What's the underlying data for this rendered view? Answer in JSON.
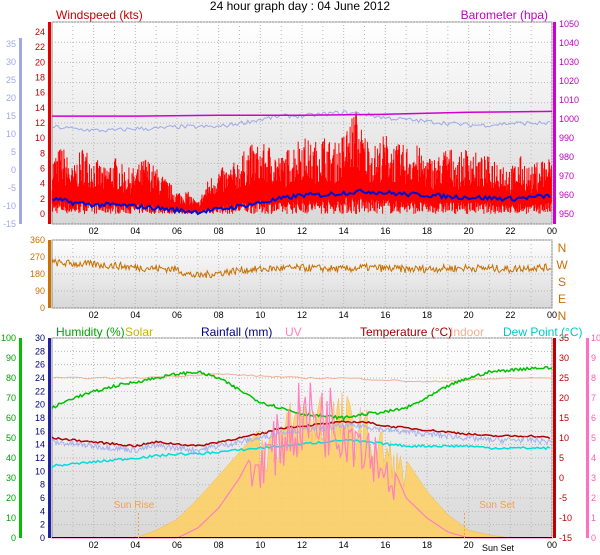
{
  "title": "24 hour graph day : 04 June 2012",
  "labels": {
    "windspeed": "Windspeed (kts)",
    "barometer": "Barometer (hpa)",
    "humidity": "Humidity (%)",
    "solar": "Solar",
    "rainfall": "Rainfall (mm)",
    "uv": "UV",
    "temperature": "Temperature (°C)",
    "indoor": "Indoor",
    "dewpoint": "Dew Point (°C)"
  },
  "sun": {
    "rise": "Sun Rise",
    "set": "Sun Set"
  },
  "colors": {
    "grid": "#b8b8b8",
    "windspeed": "#ff0000",
    "wind_avg": "#0010d0",
    "gust_scale": "#a0a8e8",
    "barometer": "#d000d0",
    "wind_dir": "#c87000",
    "humidity": "#00c000",
    "solar": "#ffd060",
    "rainfall": "#000080",
    "uv": "#ff80c0",
    "temperature": "#b00000",
    "indoor": "#f0b090",
    "dewpoint": "#00dddd"
  },
  "chart_data": [
    {
      "type": "line",
      "title": "24 hour graph day : 04 June 2012",
      "x_tick_labels": [
        "02",
        "04",
        "06",
        "08",
        "10",
        "12",
        "14",
        "16",
        "18",
        "20",
        "22",
        "00"
      ],
      "x_range_hours": [
        0,
        24
      ],
      "axes": {
        "outer_left": {
          "ticks": [
            "35",
            "30",
            "25",
            "20",
            "15",
            "10",
            "5",
            "0",
            "-5",
            "-10",
            "-15"
          ],
          "range": [
            -15,
            35
          ]
        },
        "left": {
          "label": "Windspeed (kts)",
          "ticks": [
            "24",
            "22",
            "20",
            "18",
            "16",
            "14",
            "12",
            "10",
            "8",
            "6",
            "4",
            "2",
            "0"
          ],
          "range": [
            0,
            24
          ]
        },
        "right": {
          "label": "Barometer (hpa)",
          "ticks": [
            "1050",
            "1040",
            "1030",
            "1020",
            "1010",
            "1000",
            "990",
            "980",
            "970",
            "960",
            "950"
          ],
          "range": [
            950,
            1050
          ]
        }
      },
      "series": [
        {
          "name": "Windspeed (kts)",
          "x": [
            0,
            0.5,
            1,
            1.5,
            2,
            2.5,
            3,
            3.5,
            4,
            4.5,
            5,
            5.5,
            6,
            6.5,
            7,
            7.5,
            8,
            8.5,
            9,
            9.5,
            10,
            10.5,
            11,
            11.5,
            12,
            12.5,
            13,
            13.5,
            14,
            14.5,
            15,
            15.5,
            16,
            16.5,
            17,
            17.5,
            18,
            18.5,
            19,
            19.5,
            20,
            20.5,
            21,
            21.5,
            22,
            22.5,
            23,
            23.5,
            24
          ],
          "values": [
            5,
            6,
            4,
            6,
            5,
            4,
            5,
            4,
            4,
            5,
            4,
            3,
            2,
            2,
            1,
            3,
            4,
            4,
            5,
            6,
            6,
            6,
            5,
            6,
            7,
            6,
            7,
            6,
            7,
            9,
            7,
            6,
            7,
            6,
            6,
            6,
            5,
            5,
            6,
            5,
            6,
            5,
            5,
            5,
            4,
            5,
            4,
            5,
            5
          ]
        },
        {
          "name": "Windspeed (kts) average",
          "x": [
            0,
            1,
            2,
            3,
            4,
            5,
            6,
            7,
            8,
            9,
            10,
            11,
            12,
            13,
            14,
            15,
            16,
            17,
            18,
            19,
            20,
            21,
            22,
            23,
            24
          ],
          "values": [
            2,
            1.5,
            1.2,
            1.2,
            1,
            0.8,
            0.5,
            0.3,
            0.6,
            1,
            1.5,
            2,
            2.5,
            2.5,
            2.8,
            3,
            2.8,
            2.6,
            2.5,
            2.3,
            2.2,
            2.1,
            2,
            2.2,
            2.4
          ]
        },
        {
          "name": "Windspeed (kts) gust scale",
          "x": [
            0,
            1,
            2,
            3,
            4,
            5,
            6,
            7,
            8,
            9,
            10,
            11,
            12,
            13,
            14,
            15,
            16,
            17,
            18,
            19,
            20,
            21,
            22,
            23,
            24
          ],
          "values": [
            12,
            11.5,
            11,
            11,
            11.5,
            11.5,
            12,
            12,
            12,
            13,
            14,
            15,
            15,
            15.5,
            16,
            15.5,
            14.5,
            14,
            13.5,
            13,
            12.5,
            12.5,
            13,
            13,
            13
          ]
        },
        {
          "name": "Barometer (hpa)",
          "x": [
            0,
            4,
            8,
            12,
            16,
            20,
            24
          ],
          "values": [
            1001.5,
            1001.5,
            1002,
            1002,
            1002.5,
            1003.5,
            1004
          ]
        }
      ]
    },
    {
      "type": "line",
      "x_tick_labels": [
        "02",
        "04",
        "06",
        "08",
        "10",
        "12",
        "14",
        "16",
        "18",
        "20",
        "22",
        "00"
      ],
      "x_range_hours": [
        0,
        24
      ],
      "axes": {
        "left": {
          "ticks": [
            "360",
            "270",
            "180",
            "90",
            "0"
          ],
          "range": [
            0,
            360
          ]
        },
        "right": {
          "ticks": [
            "N",
            "W",
            "S",
            "E",
            "N"
          ]
        }
      },
      "series": [
        {
          "name": "Wind direction",
          "x": [
            0,
            1,
            2,
            3,
            4,
            5,
            6,
            6.5,
            7,
            8,
            9,
            10,
            11,
            12,
            13,
            14,
            15,
            16,
            17,
            18,
            19,
            20,
            21,
            22,
            23,
            24
          ],
          "values": [
            240,
            235,
            230,
            225,
            215,
            210,
            205,
            180,
            170,
            185,
            200,
            205,
            210,
            212,
            210,
            205,
            215,
            210,
            205,
            208,
            210,
            212,
            210,
            205,
            215,
            212
          ]
        }
      ]
    },
    {
      "type": "line",
      "x_tick_labels": [
        "02",
        "04",
        "06",
        "08",
        "10",
        "12",
        "14",
        "16",
        "18",
        "20",
        "Sun Set",
        "00"
      ],
      "x_range_hours": [
        0,
        24
      ],
      "axes": {
        "outer_left": {
          "label": "Humidity (%)",
          "ticks": [
            "100",
            "90",
            "80",
            "70",
            "60",
            "50",
            "40",
            "30",
            "20",
            "10",
            "0"
          ],
          "range": [
            0,
            100
          ]
        },
        "left": {
          "label": "Rainfall (mm)",
          "ticks": [
            "30",
            "28",
            "26",
            "24",
            "22",
            "20",
            "18",
            "16",
            "14",
            "12",
            "10",
            "8",
            "6",
            "4",
            "2",
            "0"
          ],
          "range": [
            0,
            30
          ]
        },
        "right": {
          "label": "Temperature (°C)",
          "ticks": [
            "35",
            "30",
            "25",
            "20",
            "15",
            "10",
            "5",
            "0",
            "-5",
            "-10",
            "-15"
          ],
          "range": [
            -15,
            35
          ]
        },
        "outer_right": {
          "label": "UV",
          "ticks": [
            "10",
            "9",
            "8",
            "7",
            "6",
            "5",
            "4",
            "3",
            "2",
            "1",
            "0"
          ],
          "range": [
            0,
            10
          ]
        }
      },
      "series": [
        {
          "name": "Humidity (%)",
          "x": [
            0,
            1,
            2,
            3,
            4,
            5,
            6,
            7,
            8,
            9,
            10,
            11,
            12,
            13,
            14,
            15,
            16,
            17,
            18,
            19,
            20,
            21,
            22,
            23,
            24
          ],
          "values": [
            65,
            70,
            73,
            76,
            78,
            80,
            82,
            83,
            80,
            74,
            68,
            65,
            62,
            61,
            60,
            62,
            63,
            65,
            70,
            76,
            80,
            83,
            84,
            85,
            85
          ]
        },
        {
          "name": "Temperature (°C)",
          "x": [
            0,
            1,
            2,
            3,
            4,
            5,
            6,
            7,
            8,
            9,
            10,
            11,
            12,
            13,
            14,
            15,
            16,
            17,
            18,
            19,
            20,
            21,
            22,
            23,
            24
          ],
          "values": [
            10,
            9.5,
            9,
            8.5,
            8,
            9,
            8.5,
            8,
            9,
            10,
            11,
            12.5,
            13,
            13.5,
            14,
            14,
            13,
            12.5,
            12,
            11.5,
            11,
            10.5,
            10.5,
            10.5,
            10
          ]
        },
        {
          "name": "Indoor",
          "x": [
            0,
            4,
            6,
            8,
            10,
            12,
            14,
            16,
            18,
            20,
            22,
            24
          ],
          "values": [
            25,
            25,
            25.5,
            26,
            25.5,
            25,
            25,
            24.5,
            24,
            24.5,
            25,
            25
          ]
        },
        {
          "name": "Dew Point (°C)",
          "x": [
            0,
            1,
            2,
            3,
            4,
            5,
            6,
            7,
            8,
            9,
            10,
            11,
            12,
            13,
            14,
            15,
            16,
            17,
            18,
            19,
            20,
            21,
            22,
            23,
            24
          ],
          "values": [
            3,
            3.5,
            4,
            4.5,
            5,
            5.5,
            6,
            6,
            6.5,
            7,
            7.5,
            8,
            8.5,
            9,
            9.5,
            9,
            8.5,
            8,
            8,
            8,
            8,
            7.5,
            7.5,
            7.5,
            7.5
          ]
        },
        {
          "name": "UV",
          "x": [
            0,
            6,
            7,
            8,
            9,
            10,
            11,
            12,
            13,
            14,
            15,
            16,
            17,
            18,
            19,
            20,
            24
          ],
          "values": [
            0,
            0,
            0.5,
            1.5,
            3,
            5,
            6.5,
            8,
            8,
            7.5,
            6.5,
            4.5,
            2,
            1,
            0.3,
            0,
            0
          ]
        },
        {
          "name": "Solar",
          "x": [
            0,
            4,
            5,
            6,
            7,
            8,
            9,
            10,
            11,
            12,
            13,
            14,
            15,
            16,
            17,
            18,
            19,
            20,
            21,
            22,
            24
          ],
          "values": [
            0,
            0,
            0.05,
            0.12,
            0.25,
            0.4,
            0.55,
            0.7,
            0.85,
            0.95,
            1.0,
            0.95,
            0.85,
            0.7,
            0.5,
            0.3,
            0.15,
            0.05,
            0.02,
            0,
            0
          ]
        },
        {
          "name": "Rainfall (mm)",
          "x": [
            0,
            24
          ],
          "values": [
            0,
            0
          ]
        }
      ]
    }
  ]
}
